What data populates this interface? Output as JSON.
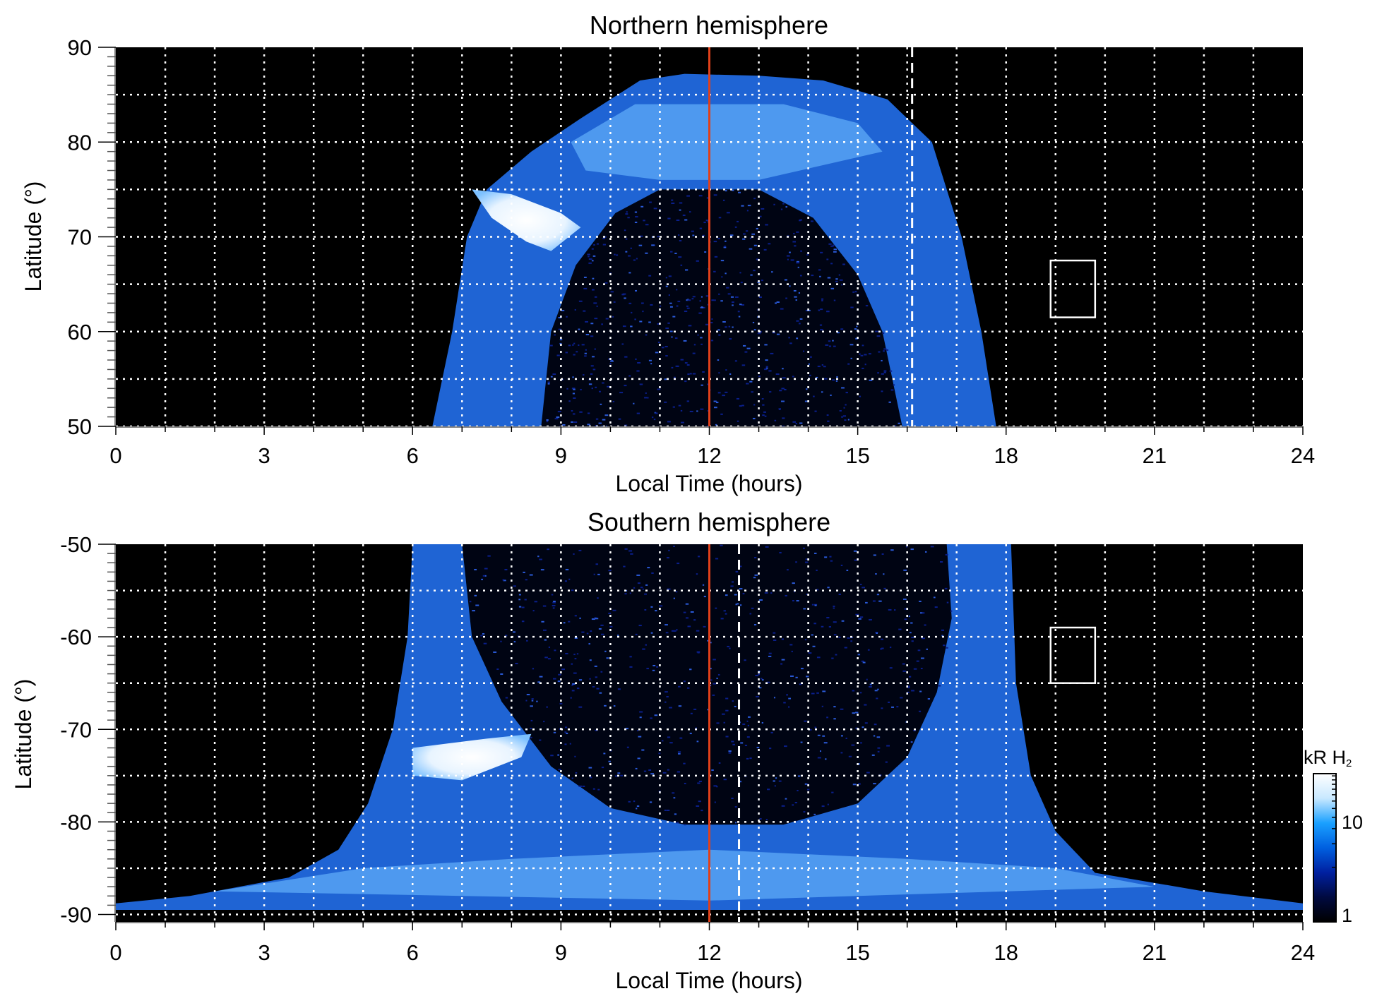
{
  "chart_data": [
    {
      "type": "heatmap",
      "title": "Northern hemisphere",
      "xlabel": "Local Time (hours)",
      "ylabel": "Latitude (°)",
      "xlim": [
        0,
        24
      ],
      "ylim": [
        50,
        90
      ],
      "xticks": [
        "0",
        "3",
        "6",
        "9",
        "12",
        "15",
        "18",
        "21",
        "24"
      ],
      "yticks": [
        "50",
        "60",
        "70",
        "80",
        "90"
      ],
      "ytick_values": [
        50,
        60,
        70,
        80,
        90
      ],
      "grid": true,
      "noon_line_lt": 12,
      "dashed_line_lt": 16.1,
      "box": {
        "lt": [
          18.9,
          19.8
        ],
        "lat": [
          61.5,
          67.5
        ]
      },
      "emission_outer": [
        [
          6.4,
          50
        ],
        [
          6.8,
          60
        ],
        [
          7.1,
          70
        ],
        [
          7.5,
          75
        ],
        [
          8.4,
          79
        ],
        [
          9.4,
          82.5
        ],
        [
          10.6,
          86.5
        ],
        [
          11.5,
          87.2
        ],
        [
          13,
          87
        ],
        [
          14.3,
          86.5
        ],
        [
          15.6,
          84.5
        ],
        [
          16.5,
          80
        ],
        [
          17.1,
          70
        ],
        [
          17.5,
          60
        ],
        [
          17.8,
          50
        ]
      ],
      "emission_inner": [
        [
          8.6,
          50
        ],
        [
          8.8,
          60
        ],
        [
          9.3,
          67
        ],
        [
          10.1,
          72.5
        ],
        [
          11,
          75
        ],
        [
          13,
          75
        ],
        [
          14.1,
          72
        ],
        [
          15,
          66
        ],
        [
          15.5,
          60
        ],
        [
          15.9,
          50
        ]
      ],
      "bright_band": [
        [
          9.2,
          80
        ],
        [
          10.5,
          84
        ],
        [
          13.5,
          84
        ],
        [
          15,
          82
        ],
        [
          15.5,
          79
        ],
        [
          13,
          76
        ],
        [
          11,
          76
        ],
        [
          9.5,
          77
        ]
      ],
      "bright_spot": [
        [
          7.2,
          75
        ],
        [
          8,
          74.5
        ],
        [
          9,
          72.5
        ],
        [
          9.4,
          71
        ],
        [
          8.8,
          68.5
        ],
        [
          8.3,
          69.5
        ],
        [
          7.6,
          72
        ]
      ]
    },
    {
      "type": "heatmap",
      "title": "Southern hemisphere",
      "xlabel": "Local Time (hours)",
      "ylabel": "Latitude (°)",
      "xlim": [
        0,
        24
      ],
      "ylim": [
        -50,
        -91
      ],
      "xticks": [
        "0",
        "3",
        "6",
        "9",
        "12",
        "15",
        "18",
        "21",
        "24"
      ],
      "yticks": [
        "-50",
        "-60",
        "-70",
        "-80",
        "-90"
      ],
      "ytick_values": [
        -50,
        -60,
        -70,
        -80,
        -90
      ],
      "grid": true,
      "noon_line_lt": 12,
      "dashed_line_lt": 12.6,
      "box": {
        "lt": [
          18.9,
          19.8
        ],
        "lat": [
          -59,
          -65
        ]
      },
      "emission_outer": [
        [
          6.0,
          -50
        ],
        [
          5.9,
          -60
        ],
        [
          5.6,
          -70
        ],
        [
          5.1,
          -78
        ],
        [
          4.5,
          -83
        ],
        [
          3.5,
          -86
        ],
        [
          1.5,
          -88
        ],
        [
          0,
          -88.8
        ],
        [
          0,
          -89.5
        ],
        [
          24,
          -89.5
        ],
        [
          24,
          -88.8
        ],
        [
          22,
          -87.5
        ],
        [
          19.8,
          -85.5
        ],
        [
          19,
          -81
        ],
        [
          18.5,
          -75
        ],
        [
          18.2,
          -65
        ],
        [
          18.1,
          -50
        ]
      ],
      "emission_inner": [
        [
          7.0,
          -50
        ],
        [
          7.2,
          -60
        ],
        [
          7.8,
          -67
        ],
        [
          8.8,
          -74
        ],
        [
          10,
          -78.5
        ],
        [
          11.5,
          -80.3
        ],
        [
          13.5,
          -80.3
        ],
        [
          15,
          -78
        ],
        [
          16,
          -73
        ],
        [
          16.6,
          -66
        ],
        [
          16.9,
          -58
        ],
        [
          16.8,
          -50
        ]
      ],
      "bright_band": [
        [
          2,
          -87.5
        ],
        [
          5,
          -85
        ],
        [
          8,
          -84
        ],
        [
          12,
          -83
        ],
        [
          16,
          -84
        ],
        [
          19,
          -85
        ],
        [
          21,
          -87
        ],
        [
          12,
          -88.5
        ]
      ],
      "bright_spot": [
        [
          6.0,
          -72
        ],
        [
          7.5,
          -71
        ],
        [
          8.4,
          -70.5
        ],
        [
          8.2,
          -73
        ],
        [
          7,
          -75.5
        ],
        [
          6,
          -75
        ]
      ]
    }
  ],
  "colorbar": {
    "label": "kR H",
    "label_sub": "2",
    "ticks": [
      "10",
      "1"
    ],
    "range": [
      1,
      30
    ],
    "scale": "log",
    "colors": [
      "#000000",
      "#000a40",
      "#0020a0",
      "#0060e0",
      "#1aa0ff",
      "#c8e8ff",
      "#ffffff"
    ]
  },
  "colors": {
    "emission": "#1f64d4",
    "emission_bright": "#5aa6f5",
    "spot": "#f4faff",
    "noon_line": "#e0401a",
    "grid": "#ffffff"
  }
}
